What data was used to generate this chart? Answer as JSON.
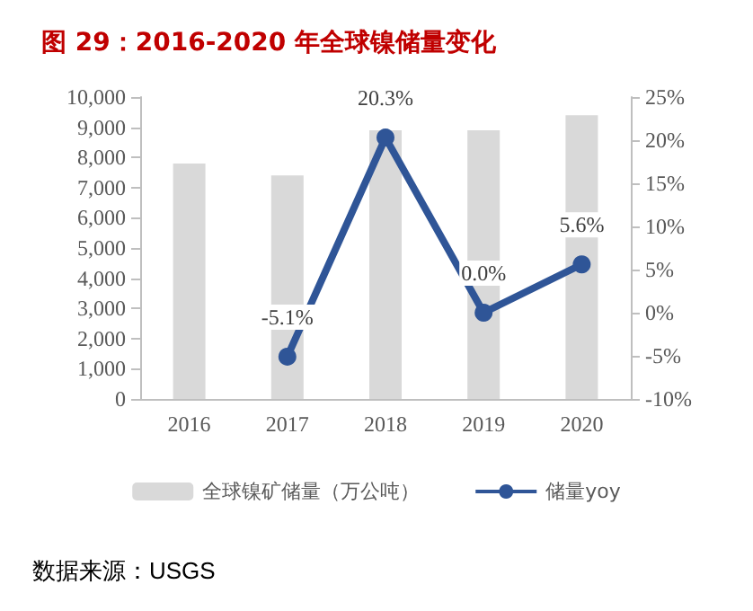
{
  "chart_data": {
    "type": "bar",
    "title": "图 29：2016-2020 年全球镍储量变化",
    "categories": [
      "2016",
      "2017",
      "2018",
      "2019",
      "2020"
    ],
    "series": [
      {
        "name": "全球镍矿储量（万公吨）",
        "color": "#d9d9d9",
        "values": [
          7800,
          7400,
          8900,
          8900,
          9400
        ]
      },
      {
        "name": "储量yoy",
        "type": "line",
        "axis": "y2",
        "color": "#2f5597",
        "marker": "circle",
        "values": [
          null,
          -5.1,
          20.3,
          0.0,
          5.6
        ],
        "value_labels": [
          null,
          "-5.1%",
          "20.3%",
          "0.0%",
          "5.6%"
        ]
      }
    ],
    "ylim": [
      0,
      10000
    ],
    "yticks": [
      0,
      {
        "value": 1000,
        "label": "1,000"
      },
      {
        "value": 2000,
        "label": "2,000"
      },
      {
        "value": 3000,
        "label": "3,000"
      },
      {
        "value": 4000,
        "label": "4,000"
      },
      {
        "value": 5000,
        "label": "5,000"
      },
      {
        "value": 6000,
        "label": "6,000"
      },
      {
        "value": 7000,
        "label": "7,000"
      },
      {
        "value": 8000,
        "label": "8,000"
      },
      {
        "value": 9000,
        "label": "9,000"
      },
      {
        "value": 10000,
        "label": "10,000"
      }
    ],
    "y2lim": [
      -10,
      25
    ],
    "y2ticks": [
      {
        "value": -10,
        "label": "-10%"
      },
      {
        "value": -5,
        "label": "-5%"
      },
      {
        "value": 0,
        "label": "0%"
      },
      {
        "value": 5,
        "label": "5%"
      },
      {
        "value": 10,
        "label": "10%"
      },
      {
        "value": 15,
        "label": "15%"
      },
      {
        "value": 20,
        "label": "20%"
      },
      {
        "value": 25,
        "label": "25%"
      }
    ],
    "grid": false,
    "legend": "bottom",
    "annotations": [
      "数据来源：USGS"
    ]
  }
}
